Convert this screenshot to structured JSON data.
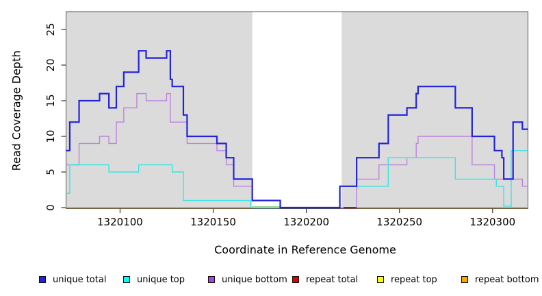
{
  "chart_data": {
    "type": "line",
    "step": "post",
    "title": "",
    "xlabel": "Coordinate in Reference Genome",
    "ylabel": "Read Coverage Depth",
    "xlim": [
      1320071,
      1320319
    ],
    "ylim": [
      0,
      27.5
    ],
    "x_ticks": [
      1320100,
      1320150,
      1320200,
      1320250,
      1320300
    ],
    "y_ticks": [
      0,
      5,
      10,
      15,
      20,
      25
    ],
    "grid": false,
    "plot_background": "#DBDBDB",
    "unshaded_region": [
      1320171,
      1320219
    ],
    "series": [
      {
        "name": "unique total",
        "color": "#2222DE",
        "width": 2.2,
        "points": [
          [
            1320071,
            8
          ],
          [
            1320073,
            12
          ],
          [
            1320078,
            15
          ],
          [
            1320089,
            16
          ],
          [
            1320094,
            14
          ],
          [
            1320098,
            17
          ],
          [
            1320102,
            19
          ],
          [
            1320110,
            22
          ],
          [
            1320114,
            21
          ],
          [
            1320125,
            22
          ],
          [
            1320127,
            18
          ],
          [
            1320128,
            17
          ],
          [
            1320134,
            13
          ],
          [
            1320136,
            10
          ],
          [
            1320152,
            9
          ],
          [
            1320157,
            7
          ],
          [
            1320161,
            4
          ],
          [
            1320171,
            1
          ],
          [
            1320186,
            0
          ],
          [
            1320218,
            3
          ],
          [
            1320227,
            7
          ],
          [
            1320239,
            9
          ],
          [
            1320244,
            13
          ],
          [
            1320254,
            14
          ],
          [
            1320259,
            16
          ],
          [
            1320260,
            17
          ],
          [
            1320280,
            14
          ],
          [
            1320289,
            10
          ],
          [
            1320301,
            8
          ],
          [
            1320305,
            7
          ],
          [
            1320306,
            4
          ],
          [
            1320311,
            12
          ],
          [
            1320316,
            11
          ]
        ]
      },
      {
        "name": "unique top",
        "color": "#35E6E6",
        "width": 1.4,
        "points": [
          [
            1320071,
            2
          ],
          [
            1320073,
            6
          ],
          [
            1320094,
            5
          ],
          [
            1320110,
            6
          ],
          [
            1320128,
            5
          ],
          [
            1320134,
            1
          ],
          [
            1320170,
            0
          ],
          [
            1320218,
            3
          ],
          [
            1320244,
            7
          ],
          [
            1320280,
            4
          ],
          [
            1320302,
            3
          ],
          [
            1320306,
            0
          ],
          [
            1320310,
            8
          ]
        ]
      },
      {
        "name": "unique bottom",
        "color": "#BE82DC",
        "width": 1.4,
        "points": [
          [
            1320071,
            6
          ],
          [
            1320078,
            9
          ],
          [
            1320089,
            10
          ],
          [
            1320094,
            9
          ],
          [
            1320098,
            12
          ],
          [
            1320102,
            14
          ],
          [
            1320109,
            16
          ],
          [
            1320114,
            15
          ],
          [
            1320125,
            16
          ],
          [
            1320127,
            12
          ],
          [
            1320136,
            9
          ],
          [
            1320152,
            8
          ],
          [
            1320157,
            6
          ],
          [
            1320161,
            3
          ],
          [
            1320171,
            1
          ],
          [
            1320186,
            0
          ],
          [
            1320227,
            4
          ],
          [
            1320239,
            6
          ],
          [
            1320254,
            7
          ],
          [
            1320259,
            9
          ],
          [
            1320260,
            10
          ],
          [
            1320289,
            6
          ],
          [
            1320301,
            4
          ],
          [
            1320316,
            3
          ]
        ]
      },
      {
        "name": "repeat total",
        "color": "#E00000",
        "width": 2,
        "points": [
          [
            1320220,
            0
          ],
          [
            1320227,
            0
          ]
        ]
      },
      {
        "name": "repeat top",
        "color": "#FFFF00",
        "rendered_color": "#8FD98F",
        "width": 1.4,
        "points": [
          [
            1320171,
            0
          ],
          [
            1320186,
            0
          ]
        ]
      },
      {
        "name": "repeat bottom",
        "color": "#FFA500",
        "width": 2,
        "segments": [
          [
            1320071,
            1320171
          ],
          [
            1320227,
            1320319
          ]
        ],
        "value": 0
      }
    ],
    "overlays": [
      {
        "name": "unique-top-zero-dip",
        "range": [
          1320306,
          1320310
        ],
        "color": "#35E6E6",
        "value": 0.2
      }
    ]
  },
  "axes": {
    "x_title": "Coordinate in Reference Genome",
    "y_title": "Read Coverage Depth"
  },
  "legend": {
    "items": [
      {
        "label": "unique total",
        "color": "#2222DE"
      },
      {
        "label": "unique top",
        "color": "#00FFFF"
      },
      {
        "label": "unique bottom",
        "color": "#A846D8"
      },
      {
        "label": "repeat total",
        "color": "#E00000"
      },
      {
        "label": "repeat top",
        "color": "#FFFF00"
      },
      {
        "label": "repeat bottom",
        "color": "#FFA500"
      }
    ]
  }
}
